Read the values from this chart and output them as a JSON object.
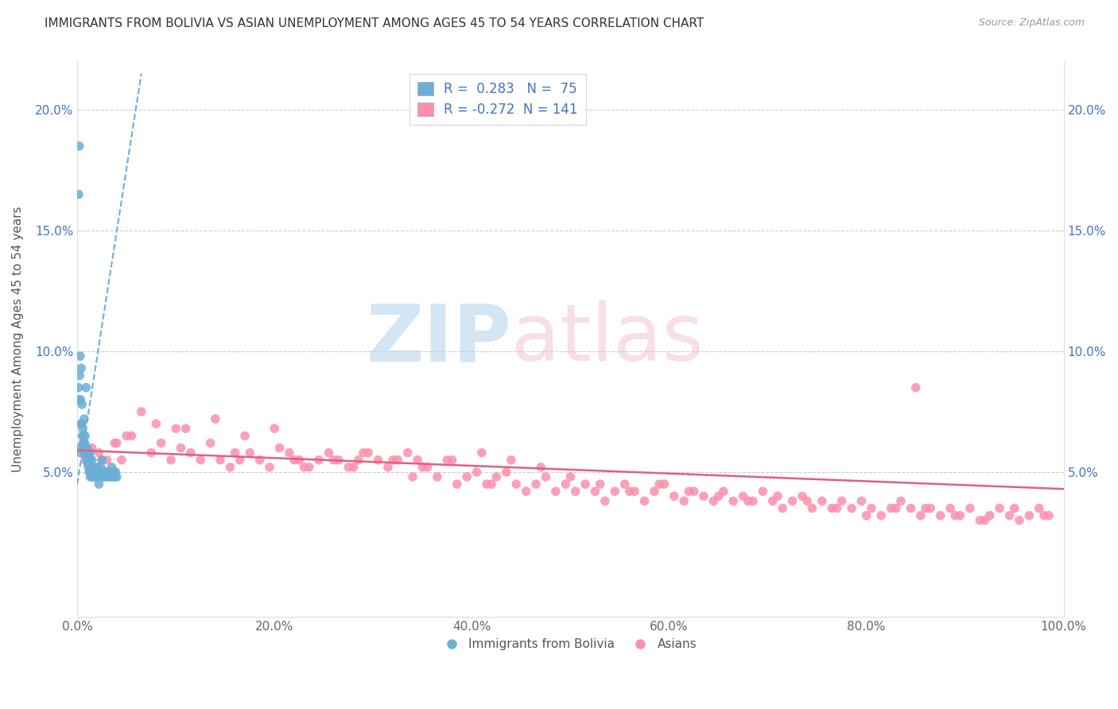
{
  "title": "IMMIGRANTS FROM BOLIVIA VS ASIAN UNEMPLOYMENT AMONG AGES 45 TO 54 YEARS CORRELATION CHART",
  "source": "Source: ZipAtlas.com",
  "ylabel": "Unemployment Among Ages 45 to 54 years",
  "xlim": [
    0,
    100
  ],
  "ylim": [
    -1,
    22
  ],
  "xtick_labels": [
    "0.0%",
    "20.0%",
    "40.0%",
    "60.0%",
    "80.0%",
    "100.0%"
  ],
  "xtick_vals": [
    0,
    20,
    40,
    60,
    80,
    100
  ],
  "ytick_labels": [
    "5.0%",
    "10.0%",
    "15.0%",
    "20.0%"
  ],
  "ytick_vals": [
    5,
    10,
    15,
    20
  ],
  "blue_color": "#6baed6",
  "pink_color": "#fc8fad",
  "blue_R": "0.283",
  "blue_N": "75",
  "pink_R": "-0.272",
  "pink_N": "141",
  "legend_label_blue": "Immigrants from Bolivia",
  "legend_label_pink": "Asians",
  "blue_trend_x": [
    0,
    6.5
  ],
  "blue_trend_y": [
    4.5,
    21.5
  ],
  "pink_trend_x": [
    0,
    100
  ],
  "pink_trend_y": [
    5.9,
    4.3
  ],
  "blue_scatter_x": [
    0.1,
    0.15,
    0.2,
    0.25,
    0.3,
    0.35,
    0.4,
    0.45,
    0.5,
    0.55,
    0.6,
    0.65,
    0.7,
    0.75,
    0.8,
    0.85,
    0.9,
    0.95,
    1.0,
    1.05,
    1.1,
    1.15,
    1.2,
    1.25,
    1.3,
    1.35,
    1.4,
    1.5,
    1.6,
    1.7,
    1.8,
    1.9,
    2.0,
    2.1,
    2.2,
    2.3,
    2.4,
    2.5,
    2.6,
    2.7,
    2.8,
    2.9,
    3.0,
    3.1,
    3.2,
    3.3,
    3.4,
    3.5,
    3.6,
    3.7,
    3.8,
    3.9,
    4.0,
    0.12,
    0.22,
    0.32,
    0.42,
    0.52,
    0.62,
    0.72,
    0.82,
    0.92,
    1.02,
    1.12,
    1.22,
    1.32,
    1.42,
    1.52,
    1.62,
    1.72,
    1.82,
    1.92,
    2.02,
    2.12,
    2.22
  ],
  "blue_scatter_y": [
    8.0,
    16.5,
    18.5,
    9.0,
    9.8,
    8.0,
    9.3,
    7.0,
    7.8,
    6.8,
    6.2,
    6.5,
    7.2,
    6.2,
    6.5,
    6.0,
    8.5,
    5.8,
    6.0,
    5.6,
    5.8,
    5.4,
    5.5,
    5.6,
    5.8,
    5.2,
    5.2,
    5.5,
    5.2,
    4.8,
    4.8,
    5.0,
    5.2,
    5.0,
    4.5,
    4.8,
    5.2,
    5.5,
    4.8,
    5.0,
    4.8,
    5.0,
    5.0,
    4.8,
    5.0,
    5.0,
    4.8,
    5.2,
    4.8,
    5.0,
    4.8,
    5.0,
    4.8,
    8.5,
    6.0,
    5.8,
    7.0,
    6.5,
    6.2,
    6.0,
    5.8,
    5.6,
    5.4,
    5.2,
    5.0,
    4.8,
    5.0,
    4.8,
    5.0,
    4.8,
    5.0,
    4.8,
    5.0,
    4.8,
    5.0
  ],
  "pink_scatter_x": [
    0.8,
    1.5,
    2.2,
    3.0,
    3.8,
    4.5,
    5.5,
    6.5,
    7.5,
    8.5,
    9.5,
    10.5,
    11.5,
    12.5,
    13.5,
    14.5,
    15.5,
    16.5,
    17.5,
    18.5,
    19.5,
    20.5,
    21.5,
    22.5,
    23.5,
    24.5,
    25.5,
    26.5,
    27.5,
    28.5,
    29.5,
    30.5,
    31.5,
    32.5,
    33.5,
    34.5,
    35.5,
    36.5,
    37.5,
    38.5,
    39.5,
    40.5,
    41.5,
    42.5,
    43.5,
    44.5,
    45.5,
    46.5,
    47.5,
    48.5,
    49.5,
    50.5,
    51.5,
    52.5,
    53.5,
    54.5,
    55.5,
    56.5,
    57.5,
    58.5,
    59.5,
    60.5,
    61.5,
    62.5,
    63.5,
    64.5,
    65.5,
    66.5,
    67.5,
    68.5,
    69.5,
    70.5,
    71.5,
    72.5,
    73.5,
    74.5,
    75.5,
    76.5,
    77.5,
    78.5,
    79.5,
    80.5,
    81.5,
    82.5,
    83.5,
    84.5,
    85.5,
    86.5,
    87.5,
    88.5,
    89.5,
    90.5,
    91.5,
    92.5,
    93.5,
    94.5,
    95.5,
    96.5,
    97.5,
    98.5,
    2.5,
    5.0,
    8.0,
    11.0,
    14.0,
    17.0,
    20.0,
    23.0,
    26.0,
    29.0,
    32.0,
    35.0,
    38.0,
    41.0,
    44.0,
    47.0,
    50.0,
    53.0,
    56.0,
    59.0,
    62.0,
    65.0,
    68.0,
    71.0,
    74.0,
    77.0,
    80.0,
    83.0,
    86.0,
    89.0,
    92.0,
    95.0,
    98.0,
    4.0,
    10.0,
    16.0,
    22.0,
    28.0,
    34.0,
    42.0,
    85.0
  ],
  "pink_scatter_y": [
    5.5,
    6.0,
    5.8,
    5.5,
    6.2,
    5.5,
    6.5,
    7.5,
    5.8,
    6.2,
    5.5,
    6.0,
    5.8,
    5.5,
    6.2,
    5.5,
    5.2,
    5.5,
    5.8,
    5.5,
    5.2,
    6.0,
    5.8,
    5.5,
    5.2,
    5.5,
    5.8,
    5.5,
    5.2,
    5.5,
    5.8,
    5.5,
    5.2,
    5.5,
    5.8,
    5.5,
    5.2,
    4.8,
    5.5,
    4.5,
    4.8,
    5.0,
    4.5,
    4.8,
    5.0,
    4.5,
    4.2,
    4.5,
    4.8,
    4.2,
    4.5,
    4.2,
    4.5,
    4.2,
    3.8,
    4.2,
    4.5,
    4.2,
    3.8,
    4.2,
    4.5,
    4.0,
    3.8,
    4.2,
    4.0,
    3.8,
    4.2,
    3.8,
    4.0,
    3.8,
    4.2,
    3.8,
    3.5,
    3.8,
    4.0,
    3.5,
    3.8,
    3.5,
    3.8,
    3.5,
    3.8,
    3.5,
    3.2,
    3.5,
    3.8,
    3.5,
    3.2,
    3.5,
    3.2,
    3.5,
    3.2,
    3.5,
    3.0,
    3.2,
    3.5,
    3.2,
    3.0,
    3.2,
    3.5,
    3.2,
    5.5,
    6.5,
    7.0,
    6.8,
    7.2,
    6.5,
    6.8,
    5.2,
    5.5,
    5.8,
    5.5,
    5.2,
    5.5,
    5.8,
    5.5,
    5.2,
    4.8,
    4.5,
    4.2,
    4.5,
    4.2,
    4.0,
    3.8,
    4.0,
    3.8,
    3.5,
    3.2,
    3.5,
    3.5,
    3.2,
    3.0,
    3.5,
    3.2,
    6.2,
    6.8,
    5.8,
    5.5,
    5.2,
    4.8,
    4.5,
    8.5
  ]
}
